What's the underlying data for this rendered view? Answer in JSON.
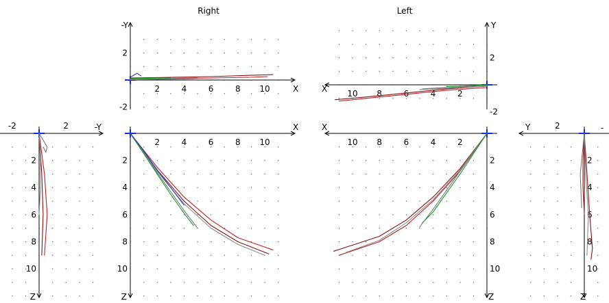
{
  "titles": {
    "right": "Right",
    "left": "Left"
  },
  "colors": {
    "trials": [
      "#8b1010",
      "#c02020",
      "#8a8a8a",
      "#777777",
      "#10a020",
      "#2040d0",
      "#5a2a10",
      "#b0a000"
    ],
    "origin_marker": "#1030e0"
  },
  "chart_data": [
    {
      "id": "right_top",
      "type": "line",
      "panel": "Right",
      "x_axis_label": "X",
      "y_axis_label": "-Y",
      "x_ticks": [
        "2",
        "4",
        "6",
        "8",
        "10"
      ],
      "y_ticks": [
        "2",
        "-2"
      ],
      "xlim": [
        0,
        11.5
      ],
      "ylim": [
        -2.2,
        4.3
      ],
      "grid": true,
      "series": [
        {
          "x": [
            0,
            3,
            6,
            9,
            10.6
          ],
          "y": [
            0.15,
            0.2,
            0.25,
            0.35,
            0.4
          ]
        },
        {
          "x": [
            0,
            3,
            6,
            9,
            10.2
          ],
          "y": [
            0.05,
            0.1,
            0.15,
            0.2,
            0.25
          ]
        },
        {
          "x": [
            0,
            2,
            4,
            5
          ],
          "y": [
            0.05,
            0.1,
            0.15,
            0.18
          ]
        },
        {
          "x": [
            0,
            2,
            4,
            4.8
          ],
          "y": [
            0.02,
            0.05,
            0.08,
            0.1
          ]
        },
        {
          "x": [
            0,
            1,
            2,
            3
          ],
          "y": [
            0.1,
            0.12,
            0.14,
            0.15
          ]
        },
        {
          "x": [
            0,
            0.5,
            0.8
          ],
          "y": [
            0.2,
            0.5,
            0.3
          ]
        }
      ]
    },
    {
      "id": "left_top",
      "type": "line",
      "panel": "Left",
      "x_axis_label": "X",
      "y_axis_label": "Y",
      "x_ticks": [
        "10",
        "8",
        "6",
        "4",
        "2"
      ],
      "y_ticks": [
        "2",
        "-2"
      ],
      "xlim": [
        11.5,
        0
      ],
      "ylim": [
        -2.2,
        4.3
      ],
      "grid": true,
      "series": [
        {
          "x": [
            0,
            3,
            6,
            9,
            11.3
          ],
          "y": [
            -0.1,
            -0.3,
            -0.6,
            -0.9,
            -1.1
          ]
        },
        {
          "x": [
            0,
            3,
            6,
            9,
            11
          ],
          "y": [
            -0.2,
            -0.4,
            -0.7,
            -1.0,
            -1.2
          ]
        },
        {
          "x": [
            0,
            2,
            4,
            5
          ],
          "y": [
            -0.1,
            -0.2,
            -0.3,
            -0.35
          ]
        },
        {
          "x": [
            0,
            2,
            4,
            4.8
          ],
          "y": [
            -0.05,
            -0.15,
            -0.25,
            -0.3
          ]
        },
        {
          "x": [
            0,
            1,
            2,
            3
          ],
          "y": [
            0,
            -0.05,
            -0.1,
            -0.12
          ]
        }
      ]
    },
    {
      "id": "right_side",
      "type": "line",
      "panel": "Right",
      "x_axis_label": "-Y",
      "y_axis_label": "Z",
      "x_ticks": [
        "-2",
        "2"
      ],
      "y_ticks": [
        "2",
        "4",
        "6",
        "8",
        "10"
      ],
      "xlim": [
        -3,
        4.8
      ],
      "ylim": [
        0,
        12.2
      ],
      "grid": true,
      "series": [
        {
          "x": [
            0,
            0.2,
            0.3,
            0.2
          ],
          "y": [
            0,
            3,
            6,
            9
          ]
        },
        {
          "x": [
            0,
            0.4,
            0.6,
            0.4
          ],
          "y": [
            0,
            3,
            6,
            9
          ]
        },
        {
          "x": [
            0,
            0.1,
            0.1,
            0
          ],
          "y": [
            0,
            2,
            4,
            6
          ]
        },
        {
          "x": [
            0,
            0.3,
            0.6,
            0.5,
            0.3
          ],
          "y": [
            0,
            0.5,
            1.0,
            1.4,
            1.0
          ]
        }
      ]
    },
    {
      "id": "right_front",
      "type": "line",
      "panel": "Right",
      "x_axis_label": "X",
      "y_axis_label": "Z",
      "x_ticks": [
        "2",
        "4",
        "6",
        "8",
        "10"
      ],
      "y_ticks": [
        "2",
        "4",
        "6",
        "8",
        "10"
      ],
      "xlim": [
        0,
        11.5
      ],
      "ylim": [
        0,
        12.2
      ],
      "grid": true,
      "series": [
        {
          "x": [
            0,
            2,
            4,
            6,
            8,
            10.3
          ],
          "y": [
            0,
            2.7,
            5.0,
            6.8,
            8.0,
            8.9
          ]
        },
        {
          "x": [
            0,
            2,
            4,
            6,
            8,
            10.6
          ],
          "y": [
            0,
            2.5,
            4.7,
            6.4,
            7.7,
            8.6
          ]
        },
        {
          "x": [
            0,
            2,
            4,
            6,
            8,
            10.0
          ],
          "y": [
            0,
            2.8,
            5.2,
            7.0,
            8.2,
            9.0
          ]
        },
        {
          "x": [
            0,
            1,
            2,
            3,
            4,
            5.0
          ],
          "y": [
            0,
            1.4,
            2.9,
            4.3,
            5.7,
            7.0
          ]
        },
        {
          "x": [
            0,
            1,
            2,
            3,
            4,
            4.7
          ],
          "y": [
            0,
            1.5,
            3.0,
            4.5,
            5.9,
            6.8
          ]
        },
        {
          "x": [
            0,
            1,
            2,
            3,
            4
          ],
          "y": [
            0,
            1.3,
            2.7,
            4.0,
            5.3
          ]
        }
      ]
    },
    {
      "id": "left_front",
      "type": "line",
      "panel": "Left",
      "x_axis_label": "X",
      "y_axis_label": "Z",
      "x_ticks": [
        "10",
        "8",
        "6",
        "4",
        "2"
      ],
      "y_ticks": [
        "2",
        "4",
        "6",
        "8",
        "10"
      ],
      "xlim": [
        11.5,
        0
      ],
      "ylim": [
        0,
        12.2
      ],
      "grid": true,
      "series": [
        {
          "x": [
            0,
            2,
            4,
            6,
            8,
            11.4
          ],
          "y": [
            0,
            2.6,
            4.7,
            6.4,
            7.6,
            8.7
          ]
        },
        {
          "x": [
            0,
            2,
            4,
            6,
            8,
            11.0
          ],
          "y": [
            0,
            2.8,
            5.0,
            6.8,
            8.0,
            9.0
          ]
        },
        {
          "x": [
            0,
            2,
            4,
            6,
            8,
            10.5
          ],
          "y": [
            0,
            2.7,
            4.9,
            6.6,
            7.9,
            8.8
          ]
        },
        {
          "x": [
            0,
            1,
            2,
            3,
            4,
            5.0
          ],
          "y": [
            0,
            1.4,
            2.8,
            4.2,
            5.6,
            6.9
          ]
        },
        {
          "x": [
            0,
            1,
            2,
            3,
            4,
            4.8
          ],
          "y": [
            0,
            1.5,
            3.0,
            4.4,
            5.8,
            6.6
          ]
        }
      ]
    },
    {
      "id": "left_side",
      "type": "line",
      "panel": "Left",
      "x_axis_label": "Y",
      "y_axis_label": "Z",
      "x_ticks": [
        "2"
      ],
      "y_ticks": [
        "2",
        "4",
        "6",
        "8",
        "10"
      ],
      "xlim": [
        4.8,
        -1.8
      ],
      "ylim": [
        0,
        12.2
      ],
      "grid": true,
      "series": [
        {
          "x": [
            0,
            -0.2,
            -0.4,
            -0.6,
            -0.5
          ],
          "y": [
            0,
            3,
            6,
            8.5,
            9.3
          ]
        },
        {
          "x": [
            0,
            0.1,
            0.1,
            0
          ],
          "y": [
            0,
            2,
            4,
            6
          ]
        },
        {
          "x": [
            0,
            -0.1,
            -0.3,
            -0.2
          ],
          "y": [
            0,
            3,
            6,
            9
          ]
        },
        {
          "x": [
            0,
            0.3,
            0.2
          ],
          "y": [
            0,
            3,
            5.5
          ]
        }
      ]
    }
  ],
  "extra_labels": {
    "left_side_minus": "-"
  }
}
